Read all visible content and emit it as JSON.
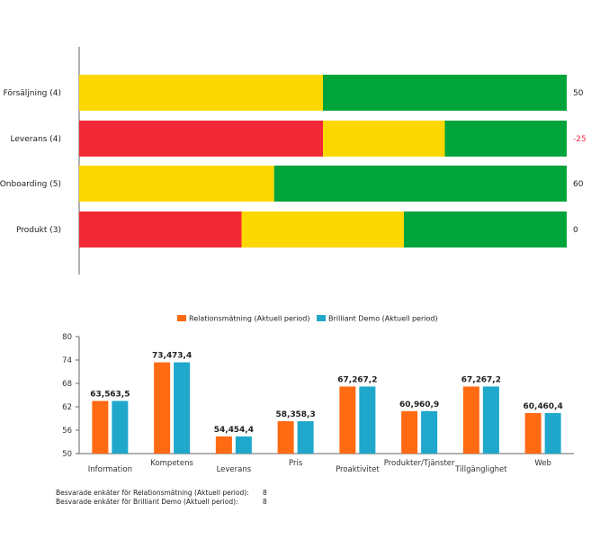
{
  "chart_data": [
    {
      "type": "bar",
      "orientation": "horizontal",
      "stacked": true,
      "categories": [
        "Försäljning (4)",
        "Leverans (4)",
        "Onboarding (5)",
        "Produkt (3)"
      ],
      "score_labels": [
        "50",
        "-25",
        "60",
        "0"
      ],
      "score_colors": [
        "#222222",
        "#f0283c",
        "#222222",
        "#222222"
      ],
      "segment_colors": {
        "red": "#f32837",
        "yellow": "#fdd800",
        "green": "#00a43a"
      },
      "segments": [
        {
          "red": 0,
          "yellow": 50,
          "green": 50
        },
        {
          "red": 50,
          "yellow": 25,
          "green": 25
        },
        {
          "red": 0,
          "yellow": 40,
          "green": 60
        },
        {
          "red": 33.3,
          "yellow": 33.3,
          "green": 33.4
        }
      ],
      "xlim": [
        0,
        100
      ]
    },
    {
      "type": "bar",
      "categories": [
        "Information",
        "Kompetens",
        "Leverans",
        "Pris",
        "Proaktivitet",
        "Produkter/Tjänster",
        "Tillgänglighet",
        "Web"
      ],
      "series": [
        {
          "name": "Relationsmätning (Aktuell period)",
          "color": "#ff6a13",
          "values": [
            63.5,
            73.4,
            54.4,
            58.3,
            67.2,
            60.9,
            67.2,
            60.4
          ],
          "labels": [
            "63,5",
            "73,4",
            "54,4",
            "58,3",
            "67,2",
            "60,9",
            "67,2",
            "60,4"
          ]
        },
        {
          "name": "Brilliant Demo (Aktuell period)",
          "color": "#1fa7cc",
          "values": [
            63.5,
            73.4,
            54.4,
            58.3,
            67.2,
            60.9,
            67.2,
            60.4
          ],
          "labels": [
            "63,5",
            "73,4",
            "54,4",
            "58,3",
            "67,2",
            "60,9",
            "67,2",
            "60,4"
          ]
        }
      ],
      "yticks": [
        "80",
        "74",
        "68",
        "62",
        "56",
        "50"
      ],
      "ylim": [
        50,
        80
      ],
      "legend": "top",
      "grid": false
    }
  ],
  "footer": [
    {
      "label": "Besvarade enkäter för Relationsmätning (Aktuell period):",
      "value": "8"
    },
    {
      "label": "Besvarade enkäter för Brilliant Demo (Aktuell period):",
      "value": "8"
    }
  ]
}
